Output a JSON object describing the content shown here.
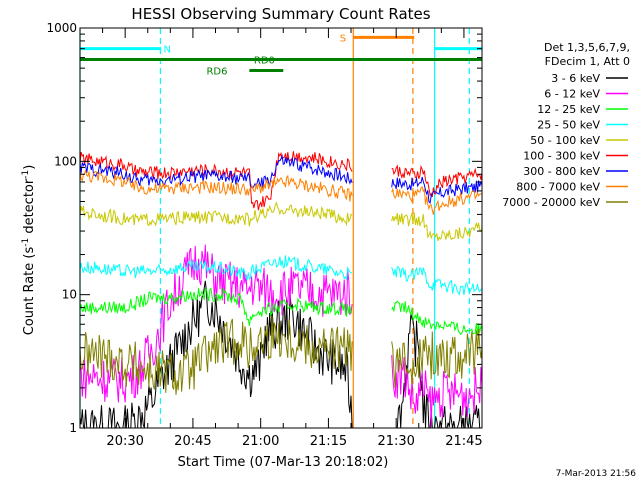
{
  "chart_data": {
    "type": "line",
    "title": "HESSI Observing Summary Count Rates",
    "xlabel": "Start Time (07-Mar-13 20:18:02)",
    "ylabel_main": "Count Rate (s",
    "ylabel_sup": "-1",
    "ylabel_tail": " detector",
    "ylabel_end": ")",
    "y_scale": "log",
    "ylim": [
      1,
      1000
    ],
    "xlim_minutes": [
      20.0,
      109.0
    ],
    "y_ticks": [
      {
        "value": 1,
        "label": "1"
      },
      {
        "value": 10,
        "label": "10"
      },
      {
        "value": 100,
        "label": "100"
      },
      {
        "value": 1000,
        "label": "1000"
      }
    ],
    "x_ticks": [
      {
        "minute": 30,
        "label": "20:30"
      },
      {
        "minute": 45,
        "label": "20:45"
      },
      {
        "minute": 60,
        "label": "21:00"
      },
      {
        "minute": 75,
        "label": "21:15"
      },
      {
        "minute": 90,
        "label": "21:30"
      },
      {
        "minute": 105,
        "label": "21:45"
      }
    ],
    "legend": {
      "placement": "right",
      "header": [
        "Det 1,3,5,6,7,9,",
        "FDecim 1, Att 0"
      ]
    },
    "series": [
      {
        "name": "3 - 6 keV",
        "color": "#000000",
        "x": [
          20,
          30,
          33,
          36,
          38,
          40,
          42,
          44,
          46,
          48,
          50,
          52,
          54,
          56,
          57.5,
          60,
          61,
          64,
          67,
          70,
          72,
          74,
          77,
          79,
          80.5,
          89,
          91,
          93,
          95,
          96,
          97.5,
          100,
          103,
          106,
          109
        ],
        "y": [
          1,
          1,
          1.2,
          1.6,
          2.4,
          3,
          4,
          5.5,
          7,
          9,
          8,
          5.5,
          4,
          3,
          2.5,
          3,
          5,
          6,
          7,
          5,
          4,
          3.5,
          3,
          2.7,
          1,
          1,
          1.2,
          5,
          4,
          1.5,
          1,
          1,
          1,
          1,
          1
        ]
      },
      {
        "name": "6 - 12 keV",
        "color": "#ff00ff",
        "x": [
          20,
          24,
          28,
          30,
          32,
          34,
          36,
          38,
          40,
          42,
          44,
          46,
          48,
          50,
          52,
          54,
          56,
          57.5,
          58,
          60,
          64,
          68,
          72,
          76,
          80.5,
          89,
          92,
          94,
          96,
          97.5,
          100,
          103,
          106,
          109
        ],
        "y": [
          2.5,
          2.4,
          2.3,
          2.3,
          2.5,
          3,
          4,
          6,
          9,
          12,
          15,
          19,
          16,
          13,
          12,
          12,
          11,
          11,
          12,
          11,
          10.5,
          11,
          10.5,
          10,
          10.5,
          2.5,
          2.5,
          1.5,
          2,
          1.5,
          1.8,
          1.8,
          1.8,
          2
        ]
      },
      {
        "name": "12 - 25 keV",
        "color": "#00ff00",
        "x": [
          20,
          24,
          28,
          30,
          32,
          34,
          36,
          40,
          44,
          48,
          52,
          56,
          57.5,
          58,
          60,
          64,
          68,
          72,
          76,
          80.5,
          89,
          92,
          94,
          97.5,
          100,
          104,
          108,
          109
        ],
        "y": [
          8,
          8,
          8,
          8,
          8.5,
          9,
          9.5,
          9.5,
          10,
          10,
          10,
          9,
          6,
          7,
          7.5,
          8,
          8.5,
          8,
          8,
          7.5,
          8,
          8,
          7,
          6,
          6,
          5.5,
          5.5,
          5.5
        ]
      },
      {
        "name": "25 - 50 keV",
        "color": "#00ffff",
        "x": [
          20,
          24,
          28,
          30,
          32,
          34,
          38,
          42,
          46,
          50,
          54,
          57.5,
          58,
          60,
          62,
          64,
          68,
          72,
          76,
          80.5,
          89,
          92,
          94,
          96,
          97.5,
          100,
          104,
          108,
          109
        ],
        "y": [
          16,
          16,
          15,
          15,
          15,
          15,
          15,
          16,
          16,
          16,
          15,
          14,
          15,
          16,
          17,
          18,
          17,
          16,
          15,
          14,
          15,
          14,
          14,
          15,
          12,
          12,
          11,
          11,
          11
        ]
      },
      {
        "name": "50 - 100 keV",
        "color": "#c8c800",
        "x": [
          20,
          24,
          28,
          30,
          32,
          36,
          40,
          44,
          48,
          52,
          56,
          57.5,
          58,
          60,
          62,
          64,
          66,
          70,
          74,
          78,
          80.5,
          89,
          92,
          94,
          96,
          97.5,
          100,
          104,
          108,
          109
        ],
        "y": [
          42,
          40,
          38,
          37,
          36,
          37,
          37,
          38,
          38,
          38,
          38,
          36,
          38,
          40,
          41,
          45,
          43,
          42,
          40,
          38,
          36,
          38,
          36,
          37,
          36,
          27,
          28,
          29,
          31,
          32
        ]
      },
      {
        "name": "100 - 300 keV",
        "color": "#ff0000",
        "x": [
          20,
          24,
          28,
          30,
          32,
          36,
          40,
          44,
          48,
          52,
          56,
          57.5,
          58,
          60,
          62,
          64,
          66,
          70,
          74,
          78,
          80.5,
          89,
          92,
          94,
          96,
          97.5,
          100,
          104,
          108,
          109
        ],
        "y": [
          105,
          100,
          96,
          93,
          84,
          82,
          82,
          85,
          86,
          84,
          82,
          80,
          45,
          48,
          52,
          115,
          112,
          108,
          102,
          96,
          92,
          85,
          83,
          78,
          86,
          55,
          70,
          75,
          80,
          82
        ]
      },
      {
        "name": "300 - 800 keV",
        "color": "#0000ff",
        "x": [
          20,
          24,
          28,
          30,
          32,
          36,
          40,
          44,
          48,
          52,
          56,
          57.5,
          58,
          60,
          62,
          64,
          66,
          70,
          74,
          78,
          80.5,
          89,
          92,
          94,
          96,
          97.5,
          100,
          104,
          108,
          109
        ],
        "y": [
          90,
          86,
          83,
          80,
          73,
          72,
          73,
          76,
          78,
          76,
          74,
          73,
          66,
          68,
          72,
          100,
          98,
          92,
          85,
          78,
          72,
          70,
          68,
          67,
          72,
          52,
          58,
          62,
          64,
          66
        ]
      },
      {
        "name": "800 - 7000 keV",
        "color": "#ff8000",
        "x": [
          20,
          24,
          28,
          30,
          32,
          36,
          40,
          44,
          48,
          52,
          56,
          57.5,
          58,
          60,
          62,
          64,
          66,
          70,
          74,
          78,
          80.5,
          89,
          92,
          94,
          96,
          97.5,
          100,
          104,
          108,
          109
        ],
        "y": [
          80,
          76,
          73,
          70,
          64,
          62,
          63,
          64,
          64,
          63,
          62,
          61,
          60,
          64,
          66,
          68,
          70,
          66,
          62,
          58,
          55,
          58,
          56,
          55,
          58,
          43,
          48,
          52,
          55,
          57
        ]
      },
      {
        "name": "7000 - 20000 keV",
        "color": "#808000",
        "x": [
          20,
          24,
          28,
          30,
          32,
          34,
          36,
          38,
          40,
          42,
          44,
          46,
          48,
          50,
          52,
          54,
          56,
          57.5,
          58,
          60,
          64,
          68,
          72,
          76,
          80.5,
          89,
          91,
          93,
          95,
          97.5,
          100,
          104,
          108,
          109
        ],
        "y": [
          3.5,
          3.5,
          3.3,
          3,
          3,
          2.8,
          2.6,
          2.6,
          2.6,
          2.5,
          2.6,
          3,
          3.5,
          4,
          4.2,
          4.5,
          4.8,
          3.5,
          4.2,
          4.5,
          5,
          4.5,
          4,
          4,
          3.8,
          3,
          3,
          3,
          3.5,
          3.5,
          3.5,
          3.5,
          3.6,
          4
        ]
      }
    ],
    "flags": [
      {
        "label": "N",
        "color": "#00ffff",
        "y_value": 700,
        "segments": [
          [
            20,
            38
          ],
          [
            98.5,
            109
          ]
        ],
        "label_minute": 38.5
      },
      {
        "label": "S",
        "color": "#ff8000",
        "y_value": 850,
        "segments": [
          [
            80.5,
            94
          ]
        ],
        "label_minute": 77.5
      },
      {
        "label": "RD0",
        "color": "#008000",
        "y_value": 580,
        "segments": [
          [
            20,
            109
          ]
        ],
        "label_minute": 58.5
      },
      {
        "label": "RD6",
        "color": "#008000",
        "y_value": 480,
        "segments": [
          [
            57.5,
            65
          ]
        ],
        "label_minute": 48
      }
    ],
    "vlines": [
      {
        "minute": 20.0,
        "color": "#00ffff",
        "style": "solid"
      },
      {
        "minute": 37.8,
        "color": "#00ffff",
        "style": "dashed"
      },
      {
        "minute": 98.5,
        "color": "#00ffff",
        "style": "solid"
      },
      {
        "minute": 106.2,
        "color": "#00ffff",
        "style": "dashed"
      },
      {
        "minute": 80.5,
        "color": "#ff8000",
        "style": "solid"
      },
      {
        "minute": 93.7,
        "color": "#ff8000",
        "style": "dashed"
      }
    ],
    "footer_timestamp": "7-Mar-2013 21:56"
  }
}
